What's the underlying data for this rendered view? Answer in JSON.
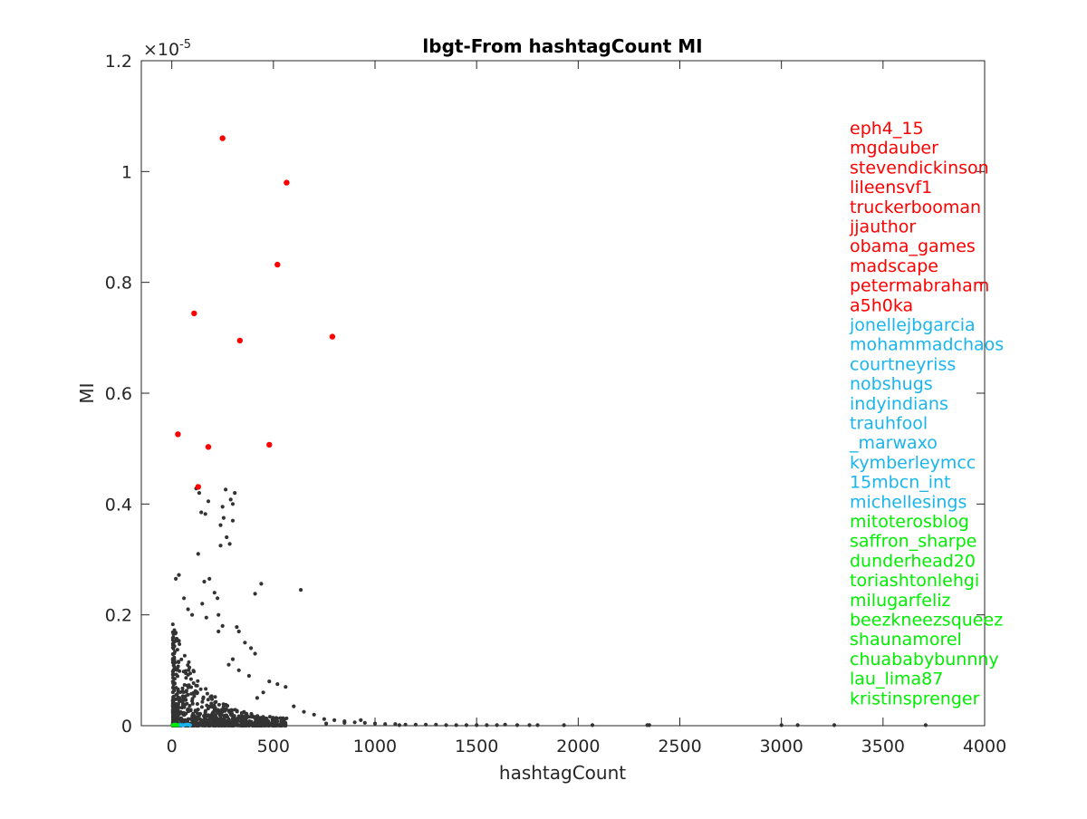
{
  "chart_data": {
    "type": "scatter",
    "title": "lbgt-From hashtagCount MI",
    "xlabel": "hashtagCount",
    "ylabel": "MI",
    "exponent_label": "×10",
    "exponent_power": "-5",
    "xlim": [
      -150,
      4000
    ],
    "ylim": [
      0,
      1.2
    ],
    "x_ticks": [
      0,
      500,
      1000,
      1500,
      2000,
      2500,
      3000,
      3500,
      4000
    ],
    "y_ticks": [
      0,
      0.2,
      0.4,
      0.6,
      0.8,
      1,
      1.2
    ],
    "y_tick_labels": [
      "0",
      "0.2",
      "0.4",
      "0.6",
      "0.8",
      "1",
      "1.2"
    ],
    "grid": false,
    "series": [
      {
        "color": "#333333",
        "points": [
          [
            120,
            0.428
          ],
          [
            135,
            0.42
          ],
          [
            145,
            0.385
          ],
          [
            165,
            0.382
          ],
          [
            180,
            0.405
          ],
          [
            240,
            0.362
          ],
          [
            250,
            0.395
          ],
          [
            255,
            0.375
          ],
          [
            265,
            0.426
          ],
          [
            290,
            0.408
          ],
          [
            300,
            0.4
          ],
          [
            310,
            0.42
          ],
          [
            300,
            0.37
          ],
          [
            270,
            0.34
          ],
          [
            285,
            0.328
          ],
          [
            240,
            0.325
          ],
          [
            130,
            0.31
          ],
          [
            160,
            0.26
          ],
          [
            185,
            0.265
          ],
          [
            210,
            0.24
          ],
          [
            440,
            0.256
          ],
          [
            410,
            0.238
          ],
          [
            635,
            0.245
          ],
          [
            20,
            0.265
          ],
          [
            35,
            0.272
          ],
          [
            60,
            0.23
          ],
          [
            80,
            0.21
          ],
          [
            100,
            0.2
          ],
          [
            150,
            0.22
          ],
          [
            225,
            0.23
          ],
          [
            230,
            0.2
          ],
          [
            250,
            0.18
          ],
          [
            170,
            0.195
          ],
          [
            320,
            0.178
          ],
          [
            330,
            0.17
          ],
          [
            230,
            0.17
          ],
          [
            360,
            0.15
          ],
          [
            390,
            0.14
          ],
          [
            410,
            0.13
          ],
          [
            300,
            0.12
          ],
          [
            480,
            0.08
          ],
          [
            520,
            0.075
          ],
          [
            560,
            0.07
          ],
          [
            330,
            0.1
          ],
          [
            450,
            0.06
          ],
          [
            420,
            0.05
          ],
          [
            380,
            0.09
          ],
          [
            280,
            0.11
          ],
          [
            600,
            0.035
          ],
          [
            650,
            0.025
          ],
          [
            700,
            0.02
          ],
          [
            750,
            0.012
          ],
          [
            800,
            0.01
          ],
          [
            850,
            0.008
          ],
          [
            900,
            0.006
          ],
          [
            950,
            0.005
          ],
          [
            1000,
            0.004
          ],
          [
            1050,
            0.003
          ],
          [
            1100,
            0.003
          ],
          [
            1150,
            0.002
          ],
          [
            1200,
            0.002
          ],
          [
            1250,
            0.002
          ],
          [
            1300,
            0.002
          ],
          [
            1350,
            0.001
          ],
          [
            1400,
            0.001
          ],
          [
            1450,
            0.001
          ],
          [
            1500,
            0.001
          ],
          [
            1550,
            0.001
          ],
          [
            1600,
            0.001
          ],
          [
            1640,
            0.002
          ],
          [
            1700,
            0.001
          ],
          [
            1760,
            0.001
          ],
          [
            1800,
            0.001
          ],
          [
            1930,
            0.001
          ],
          [
            2070,
            0.001
          ],
          [
            2340,
            0.001
          ],
          [
            2350,
            0.001
          ],
          [
            3000,
            0.001
          ],
          [
            3080,
            0.001
          ],
          [
            3260,
            0.001
          ],
          [
            3710,
            0.001
          ],
          [
            930,
            0.01
          ],
          [
            850,
            0.005
          ],
          [
            760,
            0.004
          ],
          [
            1120,
            0.001
          ]
        ]
      },
      {
        "color": "#ff0000",
        "points": [
          [
            250,
            1.06
          ],
          [
            565,
            0.98
          ],
          [
            520,
            0.832
          ],
          [
            110,
            0.744
          ],
          [
            790,
            0.702
          ],
          [
            335,
            0.695
          ],
          [
            30,
            0.526
          ],
          [
            480,
            0.507
          ],
          [
            180,
            0.503
          ],
          [
            130,
            0.431
          ]
        ]
      },
      {
        "color": "#1ab5ee",
        "points": [
          [
            20,
            0.001
          ],
          [
            35,
            0.001
          ],
          [
            45,
            0.001
          ],
          [
            60,
            0.001
          ],
          [
            70,
            0.002
          ],
          [
            80,
            0.002
          ],
          [
            90,
            0.001
          ],
          [
            25,
            0.001
          ],
          [
            50,
            0.001
          ],
          [
            40,
            0.002
          ]
        ]
      },
      {
        "color": "#00ee00",
        "points": [
          [
            5,
            0.001
          ],
          [
            10,
            0.001
          ],
          [
            15,
            0.001
          ],
          [
            20,
            0.002
          ],
          [
            25,
            0.001
          ],
          [
            12,
            0.002
          ],
          [
            8,
            0.001
          ],
          [
            18,
            0.001
          ],
          [
            22,
            0.001
          ],
          [
            28,
            0.001
          ]
        ]
      }
    ],
    "annotations": [
      {
        "text": "eph4_15",
        "color": "#ff0000"
      },
      {
        "text": "mgdauber",
        "color": "#ff0000"
      },
      {
        "text": "stevendickinson",
        "color": "#ff0000"
      },
      {
        "text": "lileensvf1",
        "color": "#ff0000"
      },
      {
        "text": "truckerbooman",
        "color": "#ff0000"
      },
      {
        "text": "jjauthor",
        "color": "#ff0000"
      },
      {
        "text": "obama_games",
        "color": "#ff0000"
      },
      {
        "text": "madscape",
        "color": "#ff0000"
      },
      {
        "text": "petermabraham",
        "color": "#ff0000"
      },
      {
        "text": "a5h0ka",
        "color": "#ff0000"
      },
      {
        "text": "jonellejbgarcia",
        "color": "#1ab5ee"
      },
      {
        "text": "mohammadchaos",
        "color": "#1ab5ee"
      },
      {
        "text": "courtneyriss",
        "color": "#1ab5ee"
      },
      {
        "text": "nobshugs",
        "color": "#1ab5ee"
      },
      {
        "text": "indyindians",
        "color": "#1ab5ee"
      },
      {
        "text": "trauhfool",
        "color": "#1ab5ee"
      },
      {
        "text": "_marwaxo",
        "color": "#1ab5ee"
      },
      {
        "text": "kymberleymcc",
        "color": "#1ab5ee"
      },
      {
        "text": "15mbcn_int",
        "color": "#1ab5ee"
      },
      {
        "text": "michellesings",
        "color": "#1ab5ee"
      },
      {
        "text": "mitoterosblog",
        "color": "#00ee00"
      },
      {
        "text": "saffron_sharpe",
        "color": "#00ee00"
      },
      {
        "text": "dunderhead20",
        "color": "#00ee00"
      },
      {
        "text": "toriashtonlehgi",
        "color": "#00ee00"
      },
      {
        "text": "milugarfeliz",
        "color": "#00ee00"
      },
      {
        "text": "beezkneezsqueez",
        "color": "#00ee00"
      },
      {
        "text": "shaunamorel",
        "color": "#00ee00"
      },
      {
        "text": "chuababybunnny",
        "color": "#00ee00"
      },
      {
        "text": "lau_lima87",
        "color": "#00ee00"
      },
      {
        "text": "kristinsprenger",
        "color": "#00ee00"
      }
    ]
  }
}
